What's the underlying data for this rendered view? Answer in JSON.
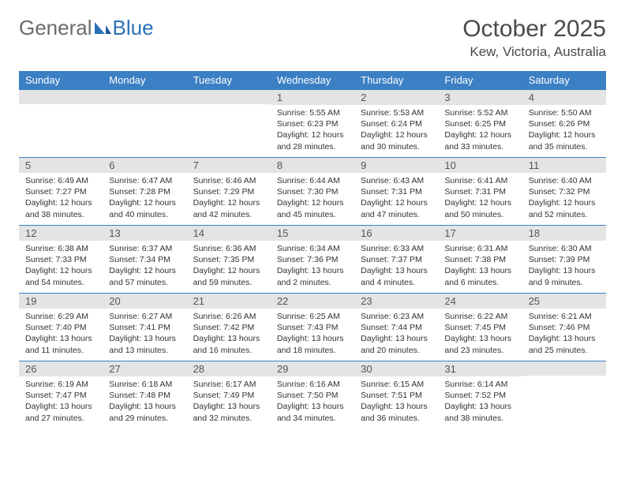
{
  "logo": {
    "part1": "General",
    "part2": "Blue"
  },
  "title": "October 2025",
  "location": "Kew, Victoria, Australia",
  "colors": {
    "header_bg": "#3b7fc4",
    "header_text": "#ffffff",
    "daynum_bg": "#e4e4e4",
    "border": "#3b7fc4",
    "body_text": "#333333",
    "page_bg": "#ffffff"
  },
  "day_headers": [
    "Sunday",
    "Monday",
    "Tuesday",
    "Wednesday",
    "Thursday",
    "Friday",
    "Saturday"
  ],
  "weeks": [
    [
      {
        "num": "",
        "sunrise": "",
        "sunset": "",
        "daylight": ""
      },
      {
        "num": "",
        "sunrise": "",
        "sunset": "",
        "daylight": ""
      },
      {
        "num": "",
        "sunrise": "",
        "sunset": "",
        "daylight": ""
      },
      {
        "num": "1",
        "sunrise": "Sunrise: 5:55 AM",
        "sunset": "Sunset: 6:23 PM",
        "daylight": "Daylight: 12 hours and 28 minutes."
      },
      {
        "num": "2",
        "sunrise": "Sunrise: 5:53 AM",
        "sunset": "Sunset: 6:24 PM",
        "daylight": "Daylight: 12 hours and 30 minutes."
      },
      {
        "num": "3",
        "sunrise": "Sunrise: 5:52 AM",
        "sunset": "Sunset: 6:25 PM",
        "daylight": "Daylight: 12 hours and 33 minutes."
      },
      {
        "num": "4",
        "sunrise": "Sunrise: 5:50 AM",
        "sunset": "Sunset: 6:26 PM",
        "daylight": "Daylight: 12 hours and 35 minutes."
      }
    ],
    [
      {
        "num": "5",
        "sunrise": "Sunrise: 6:49 AM",
        "sunset": "Sunset: 7:27 PM",
        "daylight": "Daylight: 12 hours and 38 minutes."
      },
      {
        "num": "6",
        "sunrise": "Sunrise: 6:47 AM",
        "sunset": "Sunset: 7:28 PM",
        "daylight": "Daylight: 12 hours and 40 minutes."
      },
      {
        "num": "7",
        "sunrise": "Sunrise: 6:46 AM",
        "sunset": "Sunset: 7:29 PM",
        "daylight": "Daylight: 12 hours and 42 minutes."
      },
      {
        "num": "8",
        "sunrise": "Sunrise: 6:44 AM",
        "sunset": "Sunset: 7:30 PM",
        "daylight": "Daylight: 12 hours and 45 minutes."
      },
      {
        "num": "9",
        "sunrise": "Sunrise: 6:43 AM",
        "sunset": "Sunset: 7:31 PM",
        "daylight": "Daylight: 12 hours and 47 minutes."
      },
      {
        "num": "10",
        "sunrise": "Sunrise: 6:41 AM",
        "sunset": "Sunset: 7:31 PM",
        "daylight": "Daylight: 12 hours and 50 minutes."
      },
      {
        "num": "11",
        "sunrise": "Sunrise: 6:40 AM",
        "sunset": "Sunset: 7:32 PM",
        "daylight": "Daylight: 12 hours and 52 minutes."
      }
    ],
    [
      {
        "num": "12",
        "sunrise": "Sunrise: 6:38 AM",
        "sunset": "Sunset: 7:33 PM",
        "daylight": "Daylight: 12 hours and 54 minutes."
      },
      {
        "num": "13",
        "sunrise": "Sunrise: 6:37 AM",
        "sunset": "Sunset: 7:34 PM",
        "daylight": "Daylight: 12 hours and 57 minutes."
      },
      {
        "num": "14",
        "sunrise": "Sunrise: 6:36 AM",
        "sunset": "Sunset: 7:35 PM",
        "daylight": "Daylight: 12 hours and 59 minutes."
      },
      {
        "num": "15",
        "sunrise": "Sunrise: 6:34 AM",
        "sunset": "Sunset: 7:36 PM",
        "daylight": "Daylight: 13 hours and 2 minutes."
      },
      {
        "num": "16",
        "sunrise": "Sunrise: 6:33 AM",
        "sunset": "Sunset: 7:37 PM",
        "daylight": "Daylight: 13 hours and 4 minutes."
      },
      {
        "num": "17",
        "sunrise": "Sunrise: 6:31 AM",
        "sunset": "Sunset: 7:38 PM",
        "daylight": "Daylight: 13 hours and 6 minutes."
      },
      {
        "num": "18",
        "sunrise": "Sunrise: 6:30 AM",
        "sunset": "Sunset: 7:39 PM",
        "daylight": "Daylight: 13 hours and 9 minutes."
      }
    ],
    [
      {
        "num": "19",
        "sunrise": "Sunrise: 6:29 AM",
        "sunset": "Sunset: 7:40 PM",
        "daylight": "Daylight: 13 hours and 11 minutes."
      },
      {
        "num": "20",
        "sunrise": "Sunrise: 6:27 AM",
        "sunset": "Sunset: 7:41 PM",
        "daylight": "Daylight: 13 hours and 13 minutes."
      },
      {
        "num": "21",
        "sunrise": "Sunrise: 6:26 AM",
        "sunset": "Sunset: 7:42 PM",
        "daylight": "Daylight: 13 hours and 16 minutes."
      },
      {
        "num": "22",
        "sunrise": "Sunrise: 6:25 AM",
        "sunset": "Sunset: 7:43 PM",
        "daylight": "Daylight: 13 hours and 18 minutes."
      },
      {
        "num": "23",
        "sunrise": "Sunrise: 6:23 AM",
        "sunset": "Sunset: 7:44 PM",
        "daylight": "Daylight: 13 hours and 20 minutes."
      },
      {
        "num": "24",
        "sunrise": "Sunrise: 6:22 AM",
        "sunset": "Sunset: 7:45 PM",
        "daylight": "Daylight: 13 hours and 23 minutes."
      },
      {
        "num": "25",
        "sunrise": "Sunrise: 6:21 AM",
        "sunset": "Sunset: 7:46 PM",
        "daylight": "Daylight: 13 hours and 25 minutes."
      }
    ],
    [
      {
        "num": "26",
        "sunrise": "Sunrise: 6:19 AM",
        "sunset": "Sunset: 7:47 PM",
        "daylight": "Daylight: 13 hours and 27 minutes."
      },
      {
        "num": "27",
        "sunrise": "Sunrise: 6:18 AM",
        "sunset": "Sunset: 7:48 PM",
        "daylight": "Daylight: 13 hours and 29 minutes."
      },
      {
        "num": "28",
        "sunrise": "Sunrise: 6:17 AM",
        "sunset": "Sunset: 7:49 PM",
        "daylight": "Daylight: 13 hours and 32 minutes."
      },
      {
        "num": "29",
        "sunrise": "Sunrise: 6:16 AM",
        "sunset": "Sunset: 7:50 PM",
        "daylight": "Daylight: 13 hours and 34 minutes."
      },
      {
        "num": "30",
        "sunrise": "Sunrise: 6:15 AM",
        "sunset": "Sunset: 7:51 PM",
        "daylight": "Daylight: 13 hours and 36 minutes."
      },
      {
        "num": "31",
        "sunrise": "Sunrise: 6:14 AM",
        "sunset": "Sunset: 7:52 PM",
        "daylight": "Daylight: 13 hours and 38 minutes."
      },
      {
        "num": "",
        "sunrise": "",
        "sunset": "",
        "daylight": ""
      }
    ]
  ]
}
